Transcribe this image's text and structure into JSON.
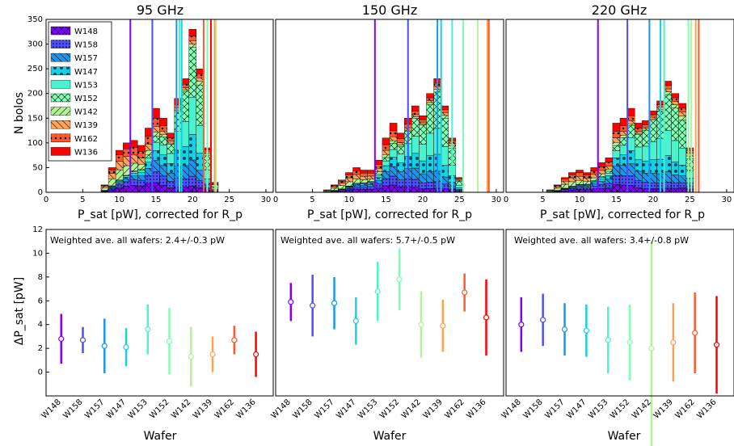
{
  "chart_data": [
    {
      "type": "bar",
      "panel_title": "95 GHz",
      "xlabel": "P_sat [pW], corrected for R_p",
      "ylabel": "N bolos",
      "xlim": [
        0,
        31
      ],
      "ylim": [
        0,
        350
      ],
      "xticks": [
        0,
        5,
        10,
        15,
        20,
        25,
        30
      ],
      "yticks": [
        0,
        50,
        100,
        150,
        200,
        250,
        300,
        350
      ],
      "stacked_histogram_envelope": {
        "x": [
          8,
          9,
          10,
          11,
          12,
          13,
          14,
          15,
          16,
          17,
          18,
          19,
          20,
          21,
          22,
          23
        ],
        "top": [
          15,
          50,
          85,
          100,
          105,
          95,
          130,
          170,
          150,
          120,
          190,
          230,
          330,
          250,
          90,
          20
        ]
      },
      "vertical_lines": [
        11.5,
        14.5,
        17.8,
        18.5,
        18.2,
        22.0,
        23.2,
        23.0,
        21.5,
        22.5
      ]
    },
    {
      "type": "bar",
      "panel_title": "150 GHz",
      "xlabel": "P_sat [pW], corrected for R_p",
      "xlim": [
        0,
        31
      ],
      "ylim": [
        0,
        350
      ],
      "xticks": [
        0,
        5,
        10,
        15,
        20,
        25,
        30
      ],
      "stacked_histogram_envelope": {
        "x": [
          7,
          8,
          9,
          10,
          11,
          12,
          13,
          14,
          15,
          16,
          17,
          18,
          19,
          20,
          21,
          22,
          23,
          24,
          25
        ],
        "top": [
          5,
          15,
          25,
          40,
          50,
          45,
          45,
          65,
          110,
          140,
          120,
          150,
          175,
          155,
          200,
          230,
          175,
          110,
          30
        ]
      },
      "vertical_lines": [
        13.5,
        18.0,
        22.0,
        22.5,
        24.0,
        25.5,
        27.5,
        28.8,
        29.0
      ]
    },
    {
      "type": "bar",
      "panel_title": "220 GHz",
      "xlabel": "P_sat [pW], corrected for R_p",
      "xlim": [
        0,
        31
      ],
      "ylim": [
        0,
        350
      ],
      "xticks": [
        0,
        5,
        10,
        15,
        20,
        25,
        30
      ],
      "stacked_histogram_envelope": {
        "x": [
          6,
          7,
          8,
          9,
          10,
          11,
          12,
          13,
          14,
          15,
          16,
          17,
          18,
          19,
          20,
          21,
          22,
          23,
          24,
          25
        ],
        "top": [
          5,
          15,
          30,
          40,
          45,
          40,
          50,
          60,
          70,
          140,
          150,
          170,
          140,
          145,
          165,
          185,
          225,
          200,
          180,
          90
        ]
      },
      "vertical_lines": [
        12.5,
        16.5,
        19.5,
        21.0,
        21.5,
        24.8,
        25.2,
        25.8,
        26.2
      ]
    },
    {
      "type": "scatter",
      "annotation": "Weighted ave. all wafers: 2.4+/-0.3 pW",
      "ylabel": "ΔP_sat [pW]",
      "xlabel": "Wafer",
      "categories": [
        "W148",
        "W158",
        "W157",
        "W147",
        "W153",
        "W152",
        "W142",
        "W139",
        "W162",
        "W136"
      ],
      "values": [
        2.8,
        2.7,
        2.2,
        2.1,
        3.6,
        2.6,
        1.3,
        1.5,
        2.7,
        1.5
      ],
      "err": [
        2.1,
        1.1,
        2.3,
        1.6,
        2.1,
        2.8,
        2.5,
        1.5,
        1.2,
        1.9
      ],
      "ylim": [
        -2,
        12
      ],
      "yticks": [
        0,
        2,
        4,
        6,
        8,
        10,
        12
      ]
    },
    {
      "type": "scatter",
      "annotation": "Weighted ave. all wafers: 5.7+/-0.5 pW",
      "xlabel": "Wafer",
      "categories": [
        "W148",
        "W158",
        "W157",
        "W147",
        "W153",
        "W152",
        "W142",
        "W139",
        "W162",
        "W136"
      ],
      "values": [
        5.9,
        5.6,
        5.8,
        4.3,
        6.8,
        7.8,
        4.0,
        3.9,
        6.7,
        4.6
      ],
      "err": [
        1.6,
        2.6,
        2.2,
        2.0,
        2.5,
        2.6,
        2.8,
        2.2,
        1.6,
        3.2
      ],
      "ylim": [
        -2,
        12
      ]
    },
    {
      "type": "scatter",
      "annotation": "Weighted ave. all wafers: 3.4+/-0.8 pW",
      "xlabel": "Wafer",
      "categories": [
        "W148",
        "W158",
        "W157",
        "W147",
        "W153",
        "W152",
        "W142",
        "W139",
        "W162",
        "W136"
      ],
      "values": [
        4.0,
        4.4,
        3.6,
        3.5,
        2.7,
        2.5,
        2.0,
        2.5,
        3.3,
        2.3
      ],
      "err": [
        2.3,
        2.2,
        2.2,
        2.2,
        2.8,
        3.2,
        9.0,
        3.3,
        3.4,
        4.1
      ],
      "ylim": [
        -2,
        12
      ]
    }
  ],
  "legend": {
    "entries": [
      "W148",
      "W158",
      "W157",
      "W147",
      "W153",
      "W152",
      "W142",
      "W139",
      "W162",
      "W136"
    ]
  },
  "colors": {
    "W148": "#7f00ff",
    "W158": "#4c50f9",
    "W157": "#1996f3",
    "W147": "#19cfe2",
    "W153": "#4cf2ce",
    "W152": "#80feb3",
    "W142": "#b3f295",
    "W139": "#ffa256",
    "W162": "#ff5a2f",
    "W136": "#ff0000"
  },
  "fill_patterns": [
    "cross-hatch",
    "dots-dense",
    "back-diagonal",
    "dots-large",
    "solid",
    "cross-hatch",
    "diagonal",
    "back-diagonal",
    "dots",
    "solid"
  ]
}
